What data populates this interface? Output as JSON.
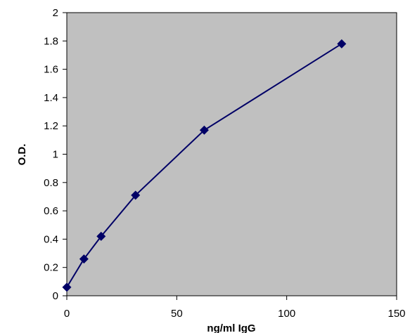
{
  "chart_data": {
    "type": "scatter",
    "title": "",
    "xlabel": "ng/ml IgG",
    "ylabel": "O.D.",
    "xlim": [
      0,
      150
    ],
    "ylim": [
      0,
      2
    ],
    "xticks": [
      0,
      50,
      100,
      150
    ],
    "yticks": [
      0,
      0.2,
      0.4,
      0.6,
      0.8,
      1,
      1.2,
      1.4,
      1.6,
      1.8,
      2
    ],
    "xtick_labels": [
      "0",
      "50",
      "100",
      "150"
    ],
    "ytick_labels": [
      "0",
      "0.2",
      "0.4",
      "0.6",
      "0.8",
      "1",
      "1.2",
      "1.4",
      "1.6",
      "1.8",
      "2"
    ],
    "grid": false,
    "legend": "none",
    "plot_background": "#c0c0c0",
    "series_color": "#000066",
    "marker": "diamond",
    "connected": true,
    "series": [
      {
        "x": [
          0,
          7.8,
          15.6,
          31.25,
          62.5,
          125
        ],
        "y": [
          0.06,
          0.26,
          0.42,
          0.71,
          1.17,
          1.78
        ]
      }
    ]
  }
}
